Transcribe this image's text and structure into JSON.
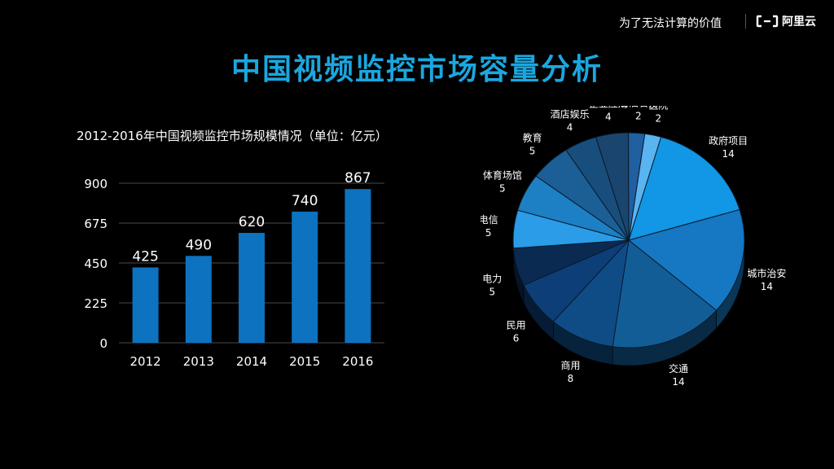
{
  "header": {
    "slogan": "为了无法计算的价值",
    "logo_name": "阿里云",
    "logo_icon": "aliyun-bracket-icon"
  },
  "page_title": "中国视频监控市场容量分析",
  "chart_data": [
    {
      "type": "bar",
      "title": "2012-2016年中国视频监控市场规模情况（单位：亿元）",
      "categories": [
        "2012",
        "2013",
        "2014",
        "2015",
        "2016"
      ],
      "values": [
        425,
        490,
        620,
        740,
        867
      ],
      "yticks": [
        "0",
        "225",
        "450",
        "675",
        "900"
      ],
      "ylim": [
        0,
        900
      ],
      "xlabel": "",
      "ylabel": "",
      "grid": true,
      "bar_color": "#0d72bf"
    },
    {
      "type": "pie",
      "style": "3d",
      "slices": [
        {
          "label": "政府项目",
          "value": 14,
          "value_label": "14",
          "color": "#1296e6"
        },
        {
          "label": "城市治安",
          "value": 14,
          "value_label": "14",
          "color": "#1677c2"
        },
        {
          "label": "交通",
          "value": 14,
          "value_label": "14",
          "color": "#135d96"
        },
        {
          "label": "商用",
          "value": 8,
          "value_label": "8",
          "color": "#0f4c86"
        },
        {
          "label": "民用",
          "value": 6,
          "value_label": "6",
          "color": "#0d3e78"
        },
        {
          "label": "电力",
          "value": 5,
          "value_label": "5",
          "color": "#0b2a52"
        },
        {
          "label": "电信",
          "value": 5,
          "value_label": "5",
          "color": "#2a9ce8"
        },
        {
          "label": "体育场馆",
          "value": 5,
          "value_label": "5",
          "color": "#1d7fc4"
        },
        {
          "label": "教育",
          "value": 5,
          "value_label": "5",
          "color": "#1b5f96"
        },
        {
          "label": "酒店娱乐",
          "value": 4,
          "value_label": "4",
          "color": "#184e7c"
        },
        {
          "label": "企业应用",
          "value": 4,
          "value_label": "4",
          "color": "#1a456f"
        },
        {
          "label": "石油石化",
          "value": 2,
          "value_label": "2",
          "color": "#205fa0"
        },
        {
          "label": "医院",
          "value": 2,
          "value_label": "2",
          "color": "#5ab4f0"
        }
      ]
    }
  ]
}
